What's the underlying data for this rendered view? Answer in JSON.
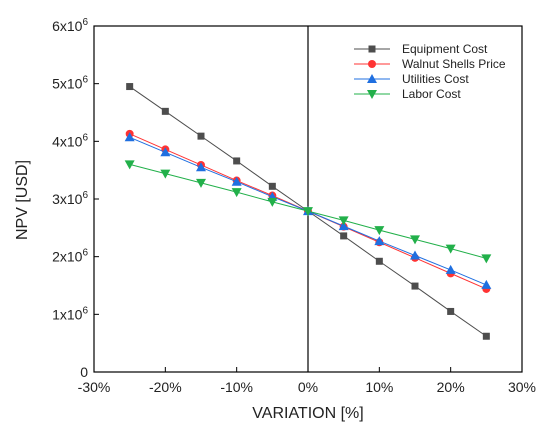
{
  "chart_data": {
    "type": "line",
    "xlabel": "VARIATION [%]",
    "ylabel": "NPV [USD]",
    "xlim": [
      -30,
      30
    ],
    "ylim": [
      0,
      6000000
    ],
    "x": [
      -25,
      -20,
      -15,
      -10,
      -5,
      0,
      5,
      10,
      15,
      20,
      25
    ],
    "x_ticks": [
      -30,
      -20,
      -10,
      0,
      10,
      20,
      30
    ],
    "x_tick_labels": [
      "-30%",
      "-20%",
      "-10%",
      "0%",
      "10%",
      "20%",
      "30%"
    ],
    "y_ticks": [
      0,
      1000000,
      2000000,
      3000000,
      4000000,
      5000000,
      6000000
    ],
    "y_tick_labels": [
      {
        "mantissa": "0",
        "exp": ""
      },
      {
        "mantissa": "1x10",
        "exp": "6"
      },
      {
        "mantissa": "2x10",
        "exp": "6"
      },
      {
        "mantissa": "3x10",
        "exp": "6"
      },
      {
        "mantissa": "4x10",
        "exp": "6"
      },
      {
        "mantissa": "5x10",
        "exp": "6"
      },
      {
        "mantissa": "6x10",
        "exp": "6"
      }
    ],
    "reference_line_x": 0,
    "grid": false,
    "legend_position": "top-right",
    "series": [
      {
        "name": "Equipment Cost",
        "color": "#4d4d4d",
        "marker": "square",
        "values": [
          4950000,
          4520000,
          4090000,
          3660000,
          3220000,
          2790000,
          2360000,
          1920000,
          1490000,
          1050000,
          620000
        ]
      },
      {
        "name": "Walnut Shells Price",
        "color": "#ff3333",
        "marker": "circle",
        "values": [
          4130000,
          3860000,
          3590000,
          3320000,
          3060000,
          2790000,
          2520000,
          2250000,
          1980000,
          1710000,
          1440000
        ]
      },
      {
        "name": "Utilities Cost",
        "color": "#1f6fe0",
        "marker": "triangle-up",
        "values": [
          4070000,
          3810000,
          3550000,
          3300000,
          3040000,
          2790000,
          2530000,
          2270000,
          2020000,
          1770000,
          1510000
        ]
      },
      {
        "name": "Labor Cost",
        "color": "#22b04a",
        "marker": "triangle-down",
        "values": [
          3600000,
          3440000,
          3280000,
          3120000,
          2950000,
          2790000,
          2630000,
          2460000,
          2300000,
          2140000,
          1970000
        ]
      }
    ]
  }
}
